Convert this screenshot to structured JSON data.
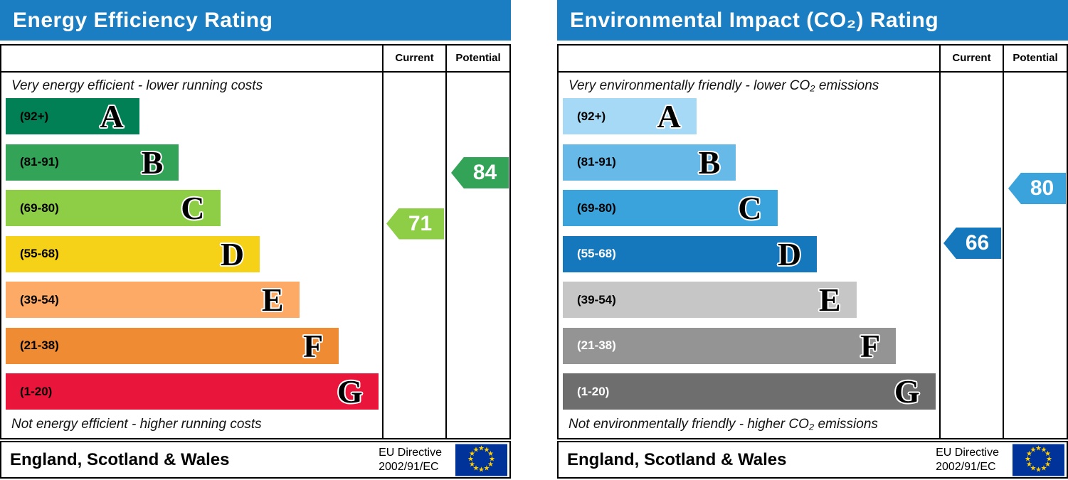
{
  "chart_data": [
    {
      "type": "bar",
      "title": "Energy Efficiency Rating",
      "header_color": "#1b7ec2",
      "columns": {
        "current": "Current",
        "potential": "Potential"
      },
      "top_note": "Very energy efficient - lower running costs",
      "bottom_note": "Not energy efficient - higher running costs",
      "bands": [
        {
          "letter": "A",
          "label": "(92+)",
          "range": "92+",
          "color": "#008054",
          "width_pct": 35.5,
          "label_color": "#000000"
        },
        {
          "letter": "B",
          "label": "(81-91)",
          "range": "81-91",
          "color": "#33a357",
          "width_pct": 46.0,
          "label_color": "#000000"
        },
        {
          "letter": "C",
          "label": "(69-80)",
          "range": "69-80",
          "color": "#8dce46",
          "width_pct": 57.0,
          "label_color": "#000000"
        },
        {
          "letter": "D",
          "label": "(55-68)",
          "range": "55-68",
          "color": "#f5d218",
          "width_pct": 67.5,
          "label_color": "#000000"
        },
        {
          "letter": "E",
          "label": "(39-54)",
          "range": "39-54",
          "color": "#fcaa65",
          "width_pct": 78.0,
          "label_color": "#000000"
        },
        {
          "letter": "F",
          "label": "(21-38)",
          "range": "21-38",
          "color": "#ef8b33",
          "width_pct": 88.5,
          "label_color": "#000000"
        },
        {
          "letter": "G",
          "label": "(1-20)",
          "range": "1-20",
          "color": "#e9153b",
          "width_pct": 99.0,
          "label_color": "#000000"
        }
      ],
      "current": {
        "value": 71,
        "color": "#8dce46"
      },
      "potential": {
        "value": 84,
        "color": "#33a357"
      },
      "footer": {
        "region": "England, Scotland & Wales",
        "directive_line1": "EU Directive",
        "directive_line2": "2002/91/EC"
      }
    },
    {
      "type": "bar",
      "title": "Environmental Impact (CO₂) Rating",
      "header_color": "#1b7ec2",
      "columns": {
        "current": "Current",
        "potential": "Potential"
      },
      "top_note": "Very environmentally friendly - lower CO₂ emissions",
      "bottom_note": "Not environmentally friendly - higher CO₂ emissions",
      "bands": [
        {
          "letter": "A",
          "label": "(92+)",
          "range": "92+",
          "color": "#a5d9f5",
          "width_pct": 35.5,
          "label_color": "#000000"
        },
        {
          "letter": "B",
          "label": "(81-91)",
          "range": "81-91",
          "color": "#67b9e8",
          "width_pct": 46.0,
          "label_color": "#000000"
        },
        {
          "letter": "C",
          "label": "(69-80)",
          "range": "69-80",
          "color": "#3aa3dc",
          "width_pct": 57.0,
          "label_color": "#000000"
        },
        {
          "letter": "D",
          "label": "(55-68)",
          "range": "55-68",
          "color": "#1578bd",
          "width_pct": 67.5,
          "label_color": "#ffffff"
        },
        {
          "letter": "E",
          "label": "(39-54)",
          "range": "39-54",
          "color": "#c6c6c6",
          "width_pct": 78.0,
          "label_color": "#000000"
        },
        {
          "letter": "F",
          "label": "(21-38)",
          "range": "21-38",
          "color": "#949494",
          "width_pct": 88.5,
          "label_color": "#ffffff"
        },
        {
          "letter": "G",
          "label": "(1-20)",
          "range": "1-20",
          "color": "#6e6e6e",
          "width_pct": 99.0,
          "label_color": "#ffffff"
        }
      ],
      "current": {
        "value": 66,
        "color": "#1578bd"
      },
      "potential": {
        "value": 80,
        "color": "#3aa3dc"
      },
      "footer": {
        "region": "England, Scotland & Wales",
        "directive_line1": "EU Directive",
        "directive_line2": "2002/91/EC"
      }
    }
  ]
}
